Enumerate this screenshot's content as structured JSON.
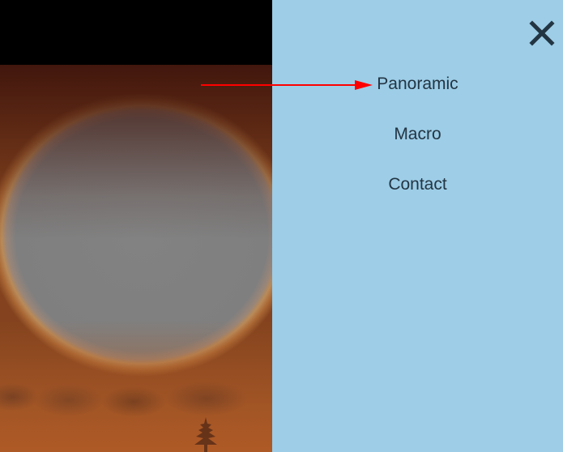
{
  "menu": {
    "items": [
      {
        "label": "Panoramic"
      },
      {
        "label": "Macro"
      },
      {
        "label": "Contact"
      }
    ]
  },
  "icons": {
    "close": "close-icon",
    "arrow": "arrow-pointer-icon",
    "tree": "tree-silhouette-icon"
  },
  "colors": {
    "menu_background": "#9dcde7",
    "menu_text": "#233543",
    "arrow": "#ff0000"
  }
}
